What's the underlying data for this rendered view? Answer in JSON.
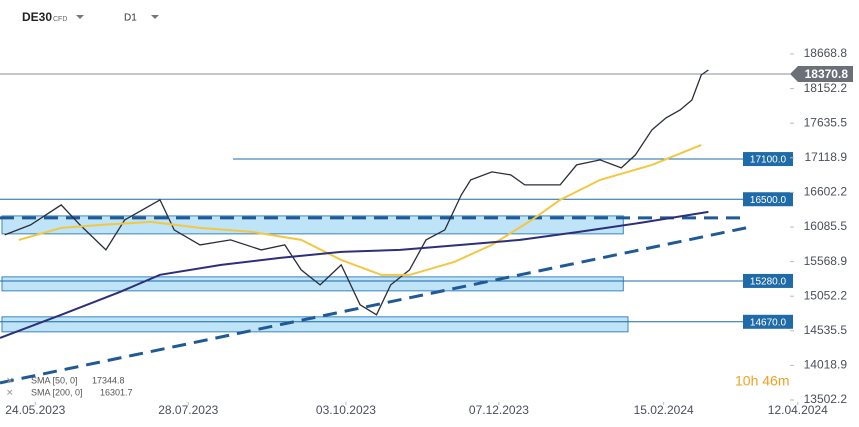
{
  "chart_data": {
    "type": "line",
    "symbol": "DE30",
    "instrument_type": "CFD",
    "interval": "D1",
    "timer": "10h 46m",
    "xlim": [
      "2023-05-09",
      "2024-05-08"
    ],
    "xticks": [
      {
        "value": "2023-05-24",
        "label": "24.05.2023"
      },
      {
        "value": "2023-07-28",
        "label": "28.07.2023"
      },
      {
        "value": "2023-10-03",
        "label": "03.10.2023"
      },
      {
        "value": "2023-12-07",
        "label": "07.12.2023"
      },
      {
        "value": "2024-02-15",
        "label": "15.02.2024"
      },
      {
        "value": "2024-04-12",
        "label": "12.04.2024"
      }
    ],
    "ylim": [
      13502.2,
      19475
    ],
    "yticks": [
      {
        "value": 18668.8,
        "label": "18668.8"
      },
      {
        "value": 18152.2,
        "label": "18152.2"
      },
      {
        "value": 17635.5,
        "label": "17635.5"
      },
      {
        "value": 17118.9,
        "label": "17118.9"
      },
      {
        "value": 16602.2,
        "label": "16602.2"
      },
      {
        "value": 16085.5,
        "label": "16085.5"
      },
      {
        "value": 15568.9,
        "label": "15568.9"
      },
      {
        "value": 15052.2,
        "label": "15052.2"
      },
      {
        "value": 14535.5,
        "label": "14535.5"
      },
      {
        "value": 14018.9,
        "label": "14018.9"
      },
      {
        "value": 13502.2,
        "label": "13502.2"
      }
    ],
    "last_price": 18370.8,
    "series": [
      {
        "color": "#2a2e39",
        "x": [
          "2023-05-11",
          "2023-05-22",
          "2023-06-04",
          "2023-06-12",
          "2023-06-23",
          "2023-07-01",
          "2023-07-16",
          "2023-07-22",
          "2023-08-02",
          "2023-08-15",
          "2023-08-28",
          "2023-09-07",
          "2023-09-14",
          "2023-09-22",
          "2023-10-01",
          "2023-10-09",
          "2023-10-16",
          "2023-10-22",
          "2023-10-30",
          "2023-11-06",
          "2023-11-14",
          "2023-11-21",
          "2023-11-25",
          "2023-12-04",
          "2023-12-12",
          "2023-12-18",
          "2023-12-27",
          "2024-01-02",
          "2024-01-09",
          "2024-01-19",
          "2024-01-28",
          "2024-02-03",
          "2024-02-10",
          "2024-02-16",
          "2024-02-22",
          "2024-02-27",
          "2024-03-02",
          "2024-03-05"
        ],
        "values": [
          15968,
          16117,
          16415,
          16117,
          15744,
          16192,
          16490,
          16042,
          15818,
          15893,
          15744,
          15818,
          15445,
          15221,
          15520,
          14923,
          14774,
          15221,
          15445,
          15893,
          16042,
          16565,
          16788,
          16908,
          16863,
          16714,
          16714,
          16714,
          17012,
          17087,
          16968,
          17162,
          17535,
          17714,
          17833,
          17982,
          18356,
          18430
        ]
      },
      {
        "name": "SMA [50, 0]",
        "legend_value": 17344.8,
        "color": "#f2c744",
        "x": [
          "2023-05-17",
          "2023-06-04",
          "2023-06-21",
          "2023-07-12",
          "2023-08-02",
          "2023-08-24",
          "2023-09-14",
          "2023-10-01",
          "2023-10-18",
          "2023-10-30",
          "2023-11-18",
          "2023-12-04",
          "2023-12-21",
          "2024-01-02",
          "2024-01-19",
          "2024-02-10",
          "2024-03-02"
        ],
        "values": [
          15893,
          16072,
          16117,
          16162,
          16072,
          16013,
          15893,
          15594,
          15370,
          15370,
          15564,
          15818,
          16192,
          16490,
          16788,
          17012,
          17311
        ]
      },
      {
        "name": "SMA [200, 0]",
        "legend_value": 16301.7,
        "color": "#2e2f7a",
        "x": [
          "2023-05-09",
          "2023-06-04",
          "2023-06-29",
          "2023-07-16",
          "2023-08-11",
          "2023-09-05",
          "2023-10-01",
          "2023-10-26",
          "2023-11-21",
          "2023-12-16",
          "2024-01-10",
          "2024-02-05",
          "2024-03-05"
        ],
        "values": [
          14430,
          14774,
          15117,
          15371,
          15520,
          15624,
          15714,
          15744,
          15818,
          15893,
          16013,
          16147,
          16311
        ]
      }
    ],
    "levels": [
      {
        "value": 17100,
        "label": "17100.0",
        "x0": "2023-08-16"
      },
      {
        "value": 16500,
        "label": "16500.0",
        "x0": "2023-05-09"
      },
      {
        "value": 15280,
        "label": "15280.0",
        "x0": "2023-05-09"
      },
      {
        "value": 14670,
        "label": "14670.0",
        "x0": "2023-05-09"
      }
    ],
    "zones": [
      {
        "x": [
          "2023-05-09",
          "2024-01-28"
        ],
        "range": [
          15983,
          16251
        ]
      },
      {
        "x": [
          "2023-05-09",
          "2024-01-28"
        ],
        "range": [
          15132,
          15341
        ]
      },
      {
        "x": [
          "2023-05-09",
          "2024-01-30"
        ],
        "range": [
          14520,
          14744
        ]
      }
    ],
    "trendlines": [
      {
        "x": [
          "2023-05-09",
          "2024-03-19"
        ],
        "values": [
          16221,
          16221
        ]
      },
      {
        "x": [
          "2023-05-09",
          "2024-03-23"
        ],
        "values": [
          13758,
          16087
        ]
      }
    ]
  }
}
